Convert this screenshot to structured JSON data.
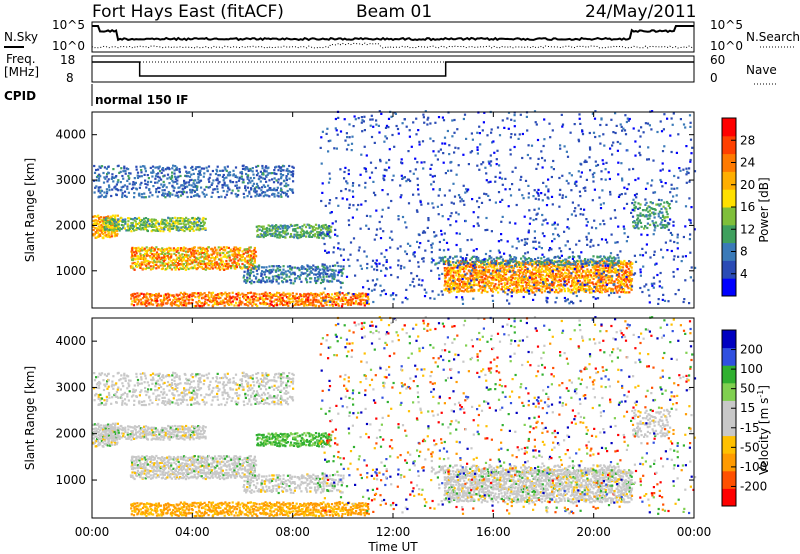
{
  "header": {
    "station": "Fort Hays East (fitACF)",
    "beam": "Beam 01",
    "date": "24/May/2011"
  },
  "panels": {
    "nsky_label": "N.Sky",
    "nsearch_label": "N.Search",
    "freq_label_1": "Freq.",
    "freq_label_2": "[MHz]",
    "nave_label": "Nave",
    "cpid_label": "CPID",
    "cpid_value": "normal 150 IF",
    "noise_ticks_left": [
      "10^5",
      "10^0"
    ],
    "noise_ticks_right": [
      "10^5",
      "10^0"
    ],
    "freq_ticks": [
      "18",
      "8"
    ],
    "nave_ticks": [
      "60",
      "0"
    ]
  },
  "chart_data": [
    {
      "type": "heatmap",
      "name": "Power",
      "ylabel": "Slant Range [km]",
      "colorbar_label": "Power [dB]",
      "colorbar_ticks": [
        "4",
        "8",
        "12",
        "16",
        "20",
        "24",
        "28"
      ],
      "colors": [
        "#0000ff",
        "#2a4bb5",
        "#3a7ab8",
        "#3fa05e",
        "#7fbf3a",
        "#ffe000",
        "#ffae00",
        "#ff7a00",
        "#ff4000",
        "#ff0000"
      ],
      "y_ticks": [
        "1000",
        "2000",
        "3000",
        "4000"
      ],
      "ylim": [
        180,
        4500
      ],
      "xlim_hours": [
        0,
        24
      ]
    },
    {
      "type": "heatmap",
      "name": "Velocity",
      "ylabel": "Slant Range [km]",
      "colorbar_label": "Velocity [m s",
      "colorbar_label_sup": "-1",
      "colorbar_label_end": "]",
      "colorbar_ticks": [
        "-200",
        "-100",
        "-50",
        "-15",
        "15",
        "50",
        "100",
        "200"
      ],
      "colors": [
        "#ff0000",
        "#ff5000",
        "#ff9a00",
        "#ffc000",
        "#c8c8c8",
        "#c8c8c8",
        "#80d050",
        "#30b030",
        "#3050e0",
        "#0000c0"
      ],
      "y_ticks": [
        "1000",
        "2000",
        "3000",
        "4000"
      ],
      "ylim": [
        180,
        4500
      ],
      "xlim_hours": [
        0,
        24
      ]
    }
  ],
  "xaxis": {
    "ticks": [
      "00:00",
      "04:00",
      "08:00",
      "12:00",
      "16:00",
      "20:00",
      "00:00"
    ],
    "label": "Time UT"
  },
  "colors": {
    "scatter_grey": "#c8c8c8",
    "frame": "#000000"
  }
}
